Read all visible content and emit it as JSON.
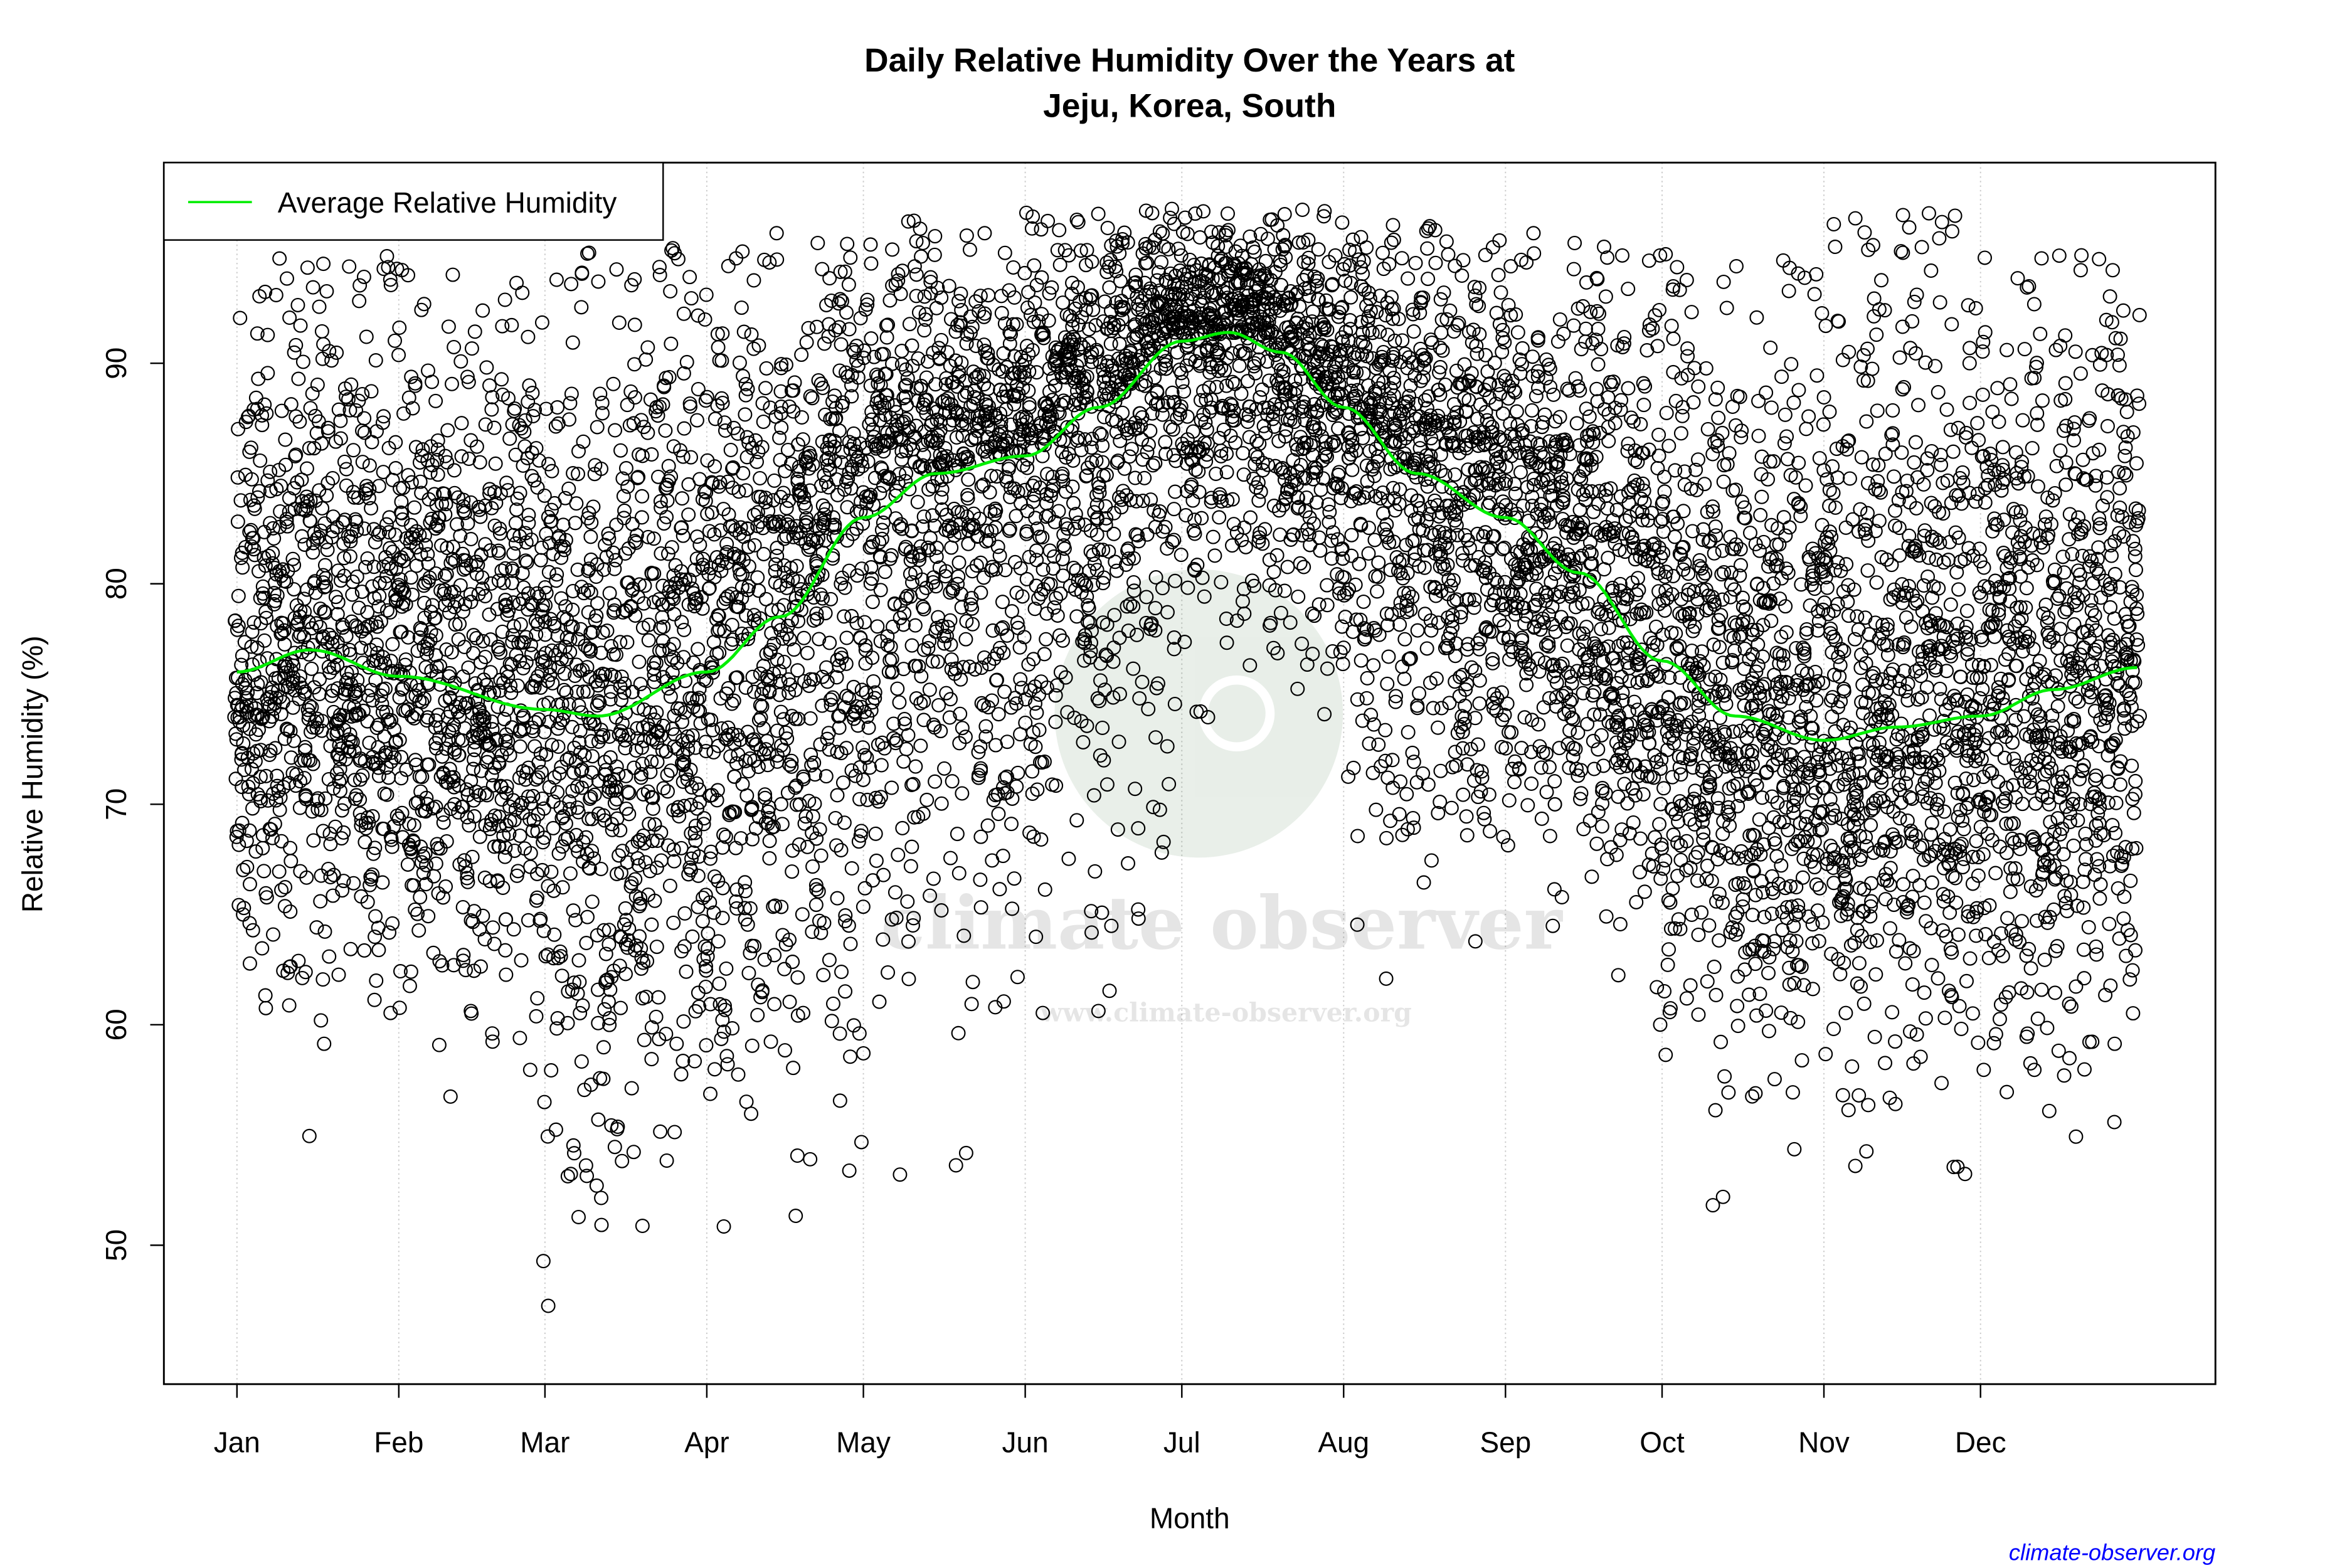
{
  "chart_data": {
    "type": "scatter",
    "title": "Daily Relative Humidity Over the Years at",
    "subtitle": "Jeju, Korea, South",
    "xlabel": "Month",
    "ylabel": "Relative Humidity  (%)",
    "x_ticks": [
      "Jan",
      "Feb",
      "Mar",
      "Apr",
      "May",
      "Jun",
      "Jul",
      "Aug",
      "Sep",
      "Oct",
      "Nov",
      "Dec"
    ],
    "x_tick_days": [
      1,
      32,
      60,
      91,
      121,
      152,
      182,
      213,
      244,
      274,
      305,
      335
    ],
    "y_ticks": [
      50,
      60,
      70,
      80,
      90
    ],
    "xlim_day": [
      -13,
      380
    ],
    "ylim": [
      43.7,
      99.1
    ],
    "grid": "vertical dotted at month ticks",
    "legend": {
      "position": "top-left",
      "entries": [
        {
          "name": "Average Relative Humidity",
          "color": "#00ee00"
        }
      ]
    },
    "average_curve": {
      "name": "Average Relative Humidity",
      "day": [
        1,
        15,
        32,
        60,
        70,
        91,
        105,
        121,
        135,
        152,
        166,
        182,
        191,
        201,
        213,
        227,
        244,
        258,
        274,
        288,
        305,
        319,
        335,
        349,
        365
      ],
      "value": [
        76,
        77,
        75.8,
        74.3,
        74,
        76,
        78.5,
        83,
        85,
        85.8,
        88,
        91,
        91.4,
        90.5,
        88,
        85,
        83,
        80.5,
        76.5,
        74,
        72.9,
        73.5,
        74,
        75.2,
        76.2
      ]
    },
    "scatter": {
      "marker": "open circle",
      "color": "#000000",
      "observed_range_by_month": {
        "Jan": [
          54.7,
          95
        ],
        "Feb": [
          54.3,
          94.5
        ],
        "Mar": [
          46,
          95.5
        ],
        "Apr": [
          45.6,
          96
        ],
        "May": [
          52.5,
          96.5
        ],
        "Jun": [
          56,
          97
        ],
        "Jul": [
          71.5,
          97
        ],
        "Aug": [
          59.7,
          96.5
        ],
        "Sep": [
          61,
          96
        ],
        "Oct": [
          51,
          95
        ],
        "Nov": [
          50.3,
          96.8
        ],
        "Dec": [
          51.3,
          95
        ]
      }
    }
  },
  "watermark": {
    "brand": "climate observer",
    "url": "www.climate-observer.org"
  },
  "credit": "climate-observer.org",
  "colors": {
    "average_line": "#00ee00",
    "points": "#000000",
    "credit": "#0000ff"
  }
}
